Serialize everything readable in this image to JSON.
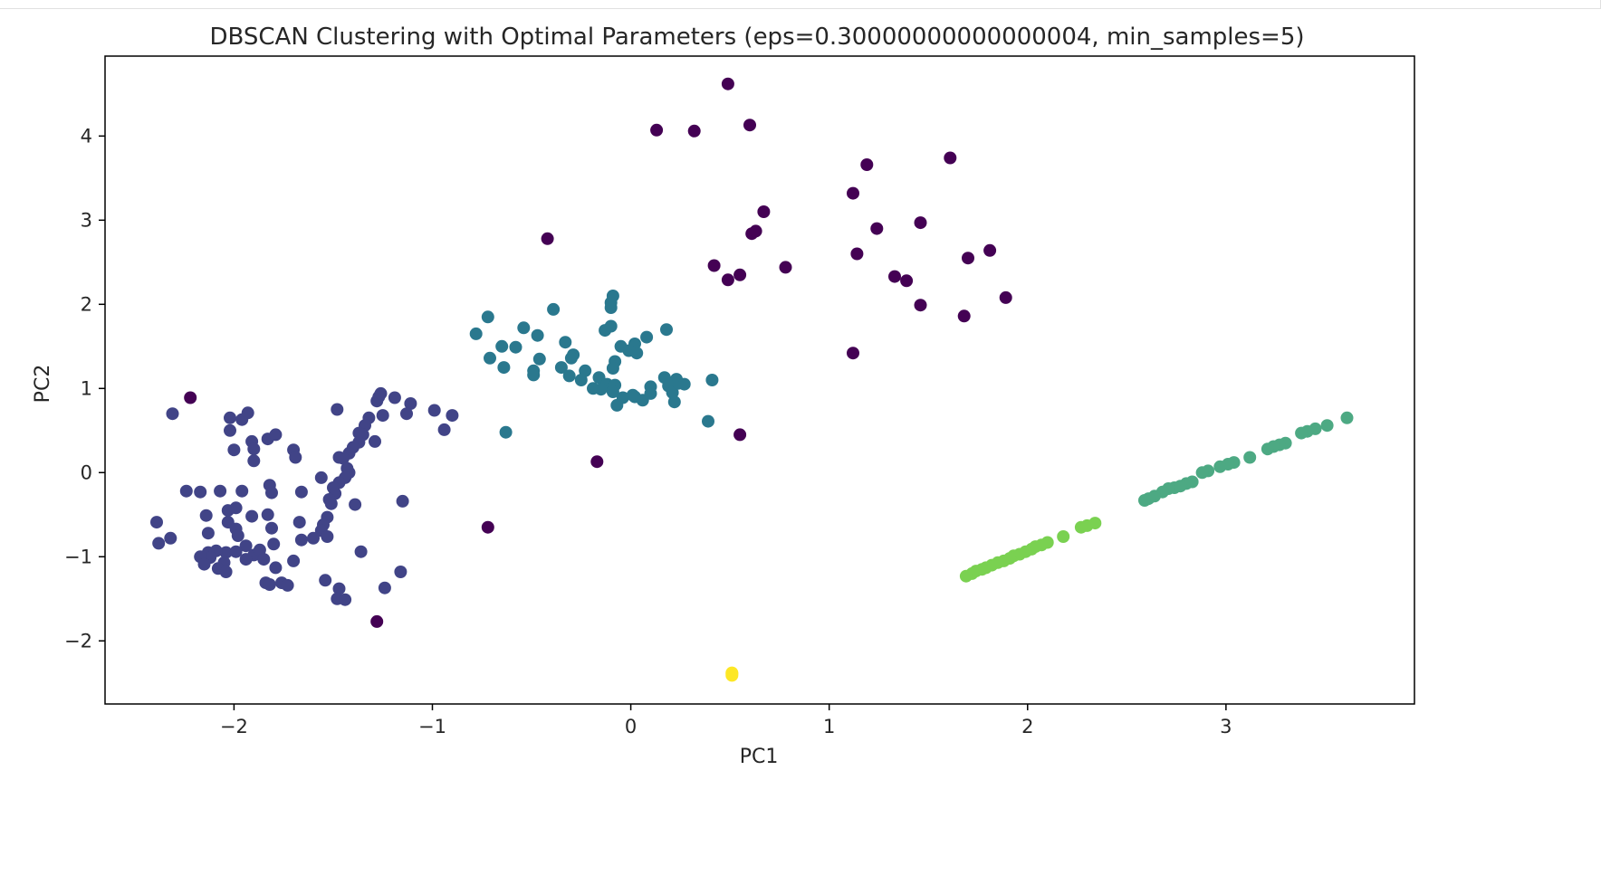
{
  "chart_data": {
    "type": "scatter",
    "title": "DBSCAN Clustering with Optimal Parameters (eps=0.30000000000000004, min_samples=5)",
    "xlabel": "PC1",
    "ylabel": "PC2",
    "xlim": [
      -2.65,
      3.95
    ],
    "ylim": [
      -2.75,
      4.95
    ],
    "xticks": [
      -2,
      -1,
      0,
      1,
      2,
      3
    ],
    "yticks": [
      -2,
      -1,
      0,
      1,
      2,
      3,
      4
    ],
    "xtick_labels": [
      "−2",
      "−1",
      "0",
      "1",
      "2",
      "3"
    ],
    "ytick_labels": [
      "−2",
      "−1",
      "0",
      "1",
      "2",
      "3",
      "4"
    ],
    "grid": false,
    "legend": "none",
    "colormap": "viridis",
    "series": [
      {
        "color": "#440154",
        "points": [
          [
            0.49,
            4.62
          ],
          [
            0.6,
            4.13
          ],
          [
            0.13,
            4.07
          ],
          [
            0.32,
            4.06
          ],
          [
            1.61,
            3.74
          ],
          [
            1.19,
            3.66
          ],
          [
            1.12,
            3.32
          ],
          [
            0.67,
            3.1
          ],
          [
            1.24,
            2.9
          ],
          [
            1.46,
            2.97
          ],
          [
            0.61,
            2.84
          ],
          [
            0.63,
            2.87
          ],
          [
            -0.42,
            2.78
          ],
          [
            1.81,
            2.64
          ],
          [
            1.14,
            2.6
          ],
          [
            1.7,
            2.55
          ],
          [
            0.42,
            2.46
          ],
          [
            0.78,
            2.44
          ],
          [
            0.55,
            2.35
          ],
          [
            1.33,
            2.33
          ],
          [
            0.49,
            2.29
          ],
          [
            1.39,
            2.28
          ],
          [
            1.89,
            2.08
          ],
          [
            1.46,
            1.99
          ],
          [
            1.68,
            1.86
          ],
          [
            1.12,
            1.42
          ],
          [
            -2.22,
            0.89
          ],
          [
            0.55,
            0.45
          ],
          [
            -0.17,
            0.13
          ],
          [
            -0.72,
            -0.65
          ],
          [
            -1.28,
            -1.77
          ]
        ]
      },
      {
        "color": "#414487",
        "points": [
          [
            -2.31,
            0.7
          ],
          [
            -2.02,
            0.65
          ],
          [
            -1.96,
            0.63
          ],
          [
            -1.93,
            0.71
          ],
          [
            -2.02,
            0.5
          ],
          [
            -1.91,
            0.37
          ],
          [
            -1.83,
            0.4
          ],
          [
            -1.79,
            0.45
          ],
          [
            -2.0,
            0.27
          ],
          [
            -1.9,
            0.28
          ],
          [
            -1.9,
            0.14
          ],
          [
            -1.7,
            0.27
          ],
          [
            -1.69,
            0.18
          ],
          [
            -1.48,
            0.75
          ],
          [
            -1.28,
            0.85
          ],
          [
            -1.27,
            0.9
          ],
          [
            -1.26,
            0.94
          ],
          [
            -1.19,
            0.89
          ],
          [
            -1.11,
            0.82
          ],
          [
            -1.13,
            0.7
          ],
          [
            -0.99,
            0.74
          ],
          [
            -0.9,
            0.68
          ],
          [
            -0.94,
            0.51
          ],
          [
            -1.25,
            0.68
          ],
          [
            -1.32,
            0.65
          ],
          [
            -1.34,
            0.56
          ],
          [
            -1.37,
            0.47
          ],
          [
            -1.35,
            0.45
          ],
          [
            -1.29,
            0.37
          ],
          [
            -1.37,
            0.36
          ],
          [
            -1.4,
            0.3
          ],
          [
            -1.42,
            0.23
          ],
          [
            -1.45,
            0.17
          ],
          [
            -1.47,
            0.18
          ],
          [
            -1.43,
            0.05
          ],
          [
            -1.42,
            0.0
          ],
          [
            -1.44,
            -0.06
          ],
          [
            -1.56,
            -0.06
          ],
          [
            -1.47,
            -0.12
          ],
          [
            -1.5,
            -0.18
          ],
          [
            -1.49,
            -0.25
          ],
          [
            -1.52,
            -0.32
          ],
          [
            -1.51,
            -0.37
          ],
          [
            -1.39,
            -0.38
          ],
          [
            -1.15,
            -0.34
          ],
          [
            -1.53,
            -0.53
          ],
          [
            -1.55,
            -0.62
          ],
          [
            -1.56,
            -0.69
          ],
          [
            -1.6,
            -0.78
          ],
          [
            -1.53,
            -0.76
          ],
          [
            -1.36,
            -0.94
          ],
          [
            -1.54,
            -1.28
          ],
          [
            -1.47,
            -1.38
          ],
          [
            -1.48,
            -1.5
          ],
          [
            -1.44,
            -1.51
          ],
          [
            -1.24,
            -1.37
          ],
          [
            -1.16,
            -1.18
          ],
          [
            -1.82,
            -0.15
          ],
          [
            -1.81,
            -0.24
          ],
          [
            -1.66,
            -0.23
          ],
          [
            -1.96,
            -0.22
          ],
          [
            -2.07,
            -0.22
          ],
          [
            -2.17,
            -0.23
          ],
          [
            -2.24,
            -0.22
          ],
          [
            -1.99,
            -0.42
          ],
          [
            -2.03,
            -0.45
          ],
          [
            -1.91,
            -0.52
          ],
          [
            -2.14,
            -0.51
          ],
          [
            -2.03,
            -0.59
          ],
          [
            -2.39,
            -0.59
          ],
          [
            -1.83,
            -0.5
          ],
          [
            -1.81,
            -0.66
          ],
          [
            -1.67,
            -0.59
          ],
          [
            -1.99,
            -0.67
          ],
          [
            -1.98,
            -0.75
          ],
          [
            -2.13,
            -0.72
          ],
          [
            -2.32,
            -0.78
          ],
          [
            -2.38,
            -0.84
          ],
          [
            -1.8,
            -0.85
          ],
          [
            -1.66,
            -0.8
          ],
          [
            -1.94,
            -0.87
          ],
          [
            -2.04,
            -0.95
          ],
          [
            -2.09,
            -0.93
          ],
          [
            -2.13,
            -0.95
          ],
          [
            -2.12,
            -1.01
          ],
          [
            -2.17,
            -1.0
          ],
          [
            -1.99,
            -0.94
          ],
          [
            -1.9,
            -0.98
          ],
          [
            -1.87,
            -0.92
          ],
          [
            -1.85,
            -1.03
          ],
          [
            -1.94,
            -1.03
          ],
          [
            -2.05,
            -1.07
          ],
          [
            -2.08,
            -1.14
          ],
          [
            -2.15,
            -1.09
          ],
          [
            -2.04,
            -1.18
          ],
          [
            -1.7,
            -1.05
          ],
          [
            -1.79,
            -1.13
          ],
          [
            -1.84,
            -1.31
          ],
          [
            -1.82,
            -1.33
          ],
          [
            -1.76,
            -1.31
          ],
          [
            -1.73,
            -1.34
          ]
        ]
      },
      {
        "color": "#2a788e",
        "points": [
          [
            -0.09,
            2.1
          ],
          [
            -0.1,
            2.02
          ],
          [
            -0.1,
            1.96
          ],
          [
            -0.39,
            1.94
          ],
          [
            -0.72,
            1.85
          ],
          [
            -0.54,
            1.72
          ],
          [
            -0.1,
            1.74
          ],
          [
            -0.13,
            1.69
          ],
          [
            0.18,
            1.7
          ],
          [
            -0.78,
            1.65
          ],
          [
            -0.47,
            1.63
          ],
          [
            -0.65,
            1.5
          ],
          [
            -0.58,
            1.49
          ],
          [
            -0.33,
            1.55
          ],
          [
            -0.05,
            1.5
          ],
          [
            0.02,
            1.53
          ],
          [
            0.08,
            1.61
          ],
          [
            -0.01,
            1.45
          ],
          [
            0.03,
            1.42
          ],
          [
            -0.71,
            1.36
          ],
          [
            -0.29,
            1.4
          ],
          [
            -0.3,
            1.36
          ],
          [
            -0.46,
            1.35
          ],
          [
            -0.08,
            1.32
          ],
          [
            -0.09,
            1.24
          ],
          [
            -0.64,
            1.25
          ],
          [
            -0.49,
            1.21
          ],
          [
            -0.49,
            1.16
          ],
          [
            -0.35,
            1.25
          ],
          [
            -0.23,
            1.21
          ],
          [
            -0.31,
            1.15
          ],
          [
            -0.16,
            1.13
          ],
          [
            -0.25,
            1.1
          ],
          [
            0.17,
            1.13
          ],
          [
            0.23,
            1.11
          ],
          [
            0.41,
            1.1
          ],
          [
            -0.12,
            1.05
          ],
          [
            -0.08,
            1.04
          ],
          [
            -0.19,
            1.0
          ],
          [
            -0.09,
            0.96
          ],
          [
            -0.15,
            0.99
          ],
          [
            0.01,
            0.92
          ],
          [
            0.02,
            0.9
          ],
          [
            0.1,
            1.02
          ],
          [
            0.19,
            1.03
          ],
          [
            0.21,
            0.95
          ],
          [
            0.24,
            1.06
          ],
          [
            0.27,
            1.05
          ],
          [
            0.1,
            0.94
          ],
          [
            0.06,
            0.86
          ],
          [
            -0.04,
            0.89
          ],
          [
            -0.07,
            0.8
          ],
          [
            0.22,
            0.84
          ],
          [
            0.39,
            0.61
          ],
          [
            -0.63,
            0.48
          ]
        ]
      },
      {
        "color": "#4da983",
        "points": [
          [
            3.61,
            0.65
          ],
          [
            3.51,
            0.56
          ],
          [
            3.45,
            0.52
          ],
          [
            3.41,
            0.49
          ],
          [
            3.38,
            0.47
          ],
          [
            3.3,
            0.35
          ],
          [
            3.27,
            0.33
          ],
          [
            3.24,
            0.31
          ],
          [
            3.21,
            0.28
          ],
          [
            3.12,
            0.18
          ],
          [
            3.04,
            0.12
          ],
          [
            3.01,
            0.1
          ],
          [
            2.97,
            0.07
          ],
          [
            2.91,
            0.02
          ],
          [
            2.88,
            0.0
          ],
          [
            2.83,
            -0.11
          ],
          [
            2.8,
            -0.13
          ],
          [
            2.77,
            -0.16
          ],
          [
            2.74,
            -0.18
          ],
          [
            2.71,
            -0.19
          ],
          [
            2.68,
            -0.23
          ],
          [
            2.64,
            -0.28
          ],
          [
            2.61,
            -0.31
          ],
          [
            2.59,
            -0.33
          ]
        ]
      },
      {
        "color": "#7ad151",
        "points": [
          [
            2.34,
            -0.6
          ],
          [
            2.3,
            -0.63
          ],
          [
            2.27,
            -0.65
          ],
          [
            2.18,
            -0.76
          ],
          [
            2.1,
            -0.83
          ],
          [
            2.07,
            -0.86
          ],
          [
            2.04,
            -0.88
          ],
          [
            2.02,
            -0.91
          ],
          [
            1.99,
            -0.94
          ],
          [
            1.96,
            -0.97
          ],
          [
            1.93,
            -0.99
          ],
          [
            1.91,
            -1.02
          ],
          [
            1.88,
            -1.05
          ],
          [
            1.85,
            -1.07
          ],
          [
            1.82,
            -1.1
          ],
          [
            1.79,
            -1.13
          ],
          [
            1.77,
            -1.15
          ],
          [
            1.74,
            -1.17
          ],
          [
            1.72,
            -1.2
          ],
          [
            1.69,
            -1.23
          ]
        ]
      },
      {
        "color": "#fde725",
        "points": [
          [
            0.51,
            -2.39
          ],
          [
            0.51,
            -2.41
          ],
          [
            0.51,
            -2.38
          ]
        ]
      }
    ]
  }
}
